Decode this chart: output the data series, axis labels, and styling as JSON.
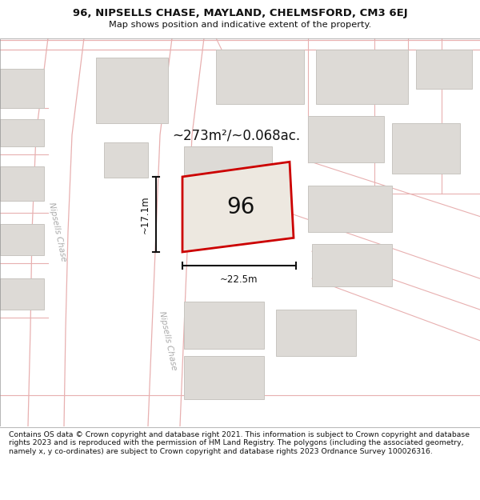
{
  "title_line1": "96, NIPSELLS CHASE, MAYLAND, CHELMSFORD, CM3 6EJ",
  "title_line2": "Map shows position and indicative extent of the property.",
  "footer_text": "Contains OS data © Crown copyright and database right 2021. This information is subject to Crown copyright and database rights 2023 and is reproduced with the permission of HM Land Registry. The polygons (including the associated geometry, namely x, y co-ordinates) are subject to Crown copyright and database rights 2023 Ordnance Survey 100026316.",
  "map_bg": "#f7f6f4",
  "road_line_color": "#e8b0b0",
  "building_color": "#dddad6",
  "building_border_color": "#c8c5c0",
  "highlight_color": "#cc0000",
  "area_text": "~273m²/~0.068ac.",
  "label_96": "96",
  "dim_width": "~22.5m",
  "dim_height": "~17.1m",
  "street_name": "Nipsells Chase",
  "street_name2": "Nipsells Chase"
}
